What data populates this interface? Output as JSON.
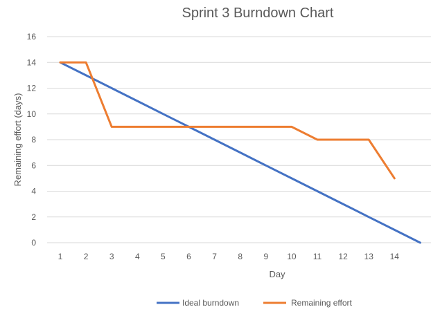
{
  "chart_data": {
    "type": "line",
    "title": "Sprint 3 Burndown Chart",
    "xlabel": "Day",
    "ylabel": "Remaining effort (days)",
    "x": [
      1,
      2,
      3,
      4,
      5,
      6,
      7,
      8,
      9,
      10,
      11,
      12,
      13,
      14
    ],
    "ylim": [
      0,
      16
    ],
    "yticks": [
      0,
      2,
      4,
      6,
      8,
      10,
      12,
      14,
      16
    ],
    "grid": true,
    "legend": "bottom",
    "series": [
      {
        "name": "Ideal burndown",
        "color": "#4472C4",
        "points": [
          [
            1,
            14
          ],
          [
            2,
            13
          ],
          [
            3,
            12
          ],
          [
            4,
            11
          ],
          [
            5,
            10
          ],
          [
            6,
            9
          ],
          [
            7,
            8
          ],
          [
            8,
            7
          ],
          [
            9,
            6
          ],
          [
            10,
            5
          ],
          [
            11,
            4
          ],
          [
            12,
            3
          ],
          [
            13,
            2
          ],
          [
            14,
            1
          ],
          [
            15,
            0
          ]
        ]
      },
      {
        "name": "Remaining effort",
        "color": "#ED7D31",
        "points": [
          [
            1,
            14
          ],
          [
            2,
            14
          ],
          [
            3,
            9
          ],
          [
            4,
            9
          ],
          [
            5,
            9
          ],
          [
            6,
            9
          ],
          [
            7,
            9
          ],
          [
            8,
            9
          ],
          [
            9,
            9
          ],
          [
            10,
            9
          ],
          [
            11,
            8
          ],
          [
            12,
            8
          ],
          [
            13,
            8
          ],
          [
            14,
            5
          ]
        ]
      }
    ]
  }
}
